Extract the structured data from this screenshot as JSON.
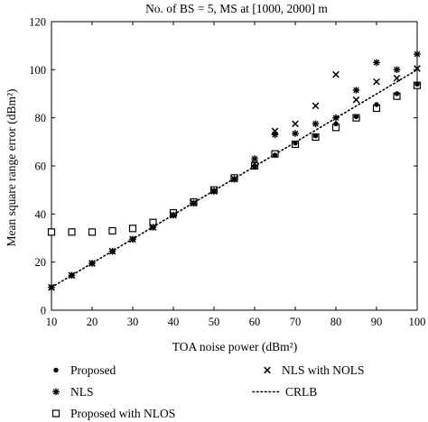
{
  "chart_data": {
    "type": "scatter",
    "title": "No. of BS = 5, MS at [1000, 2000] m",
    "xlabel": "TOA noise power (dBm²)",
    "ylabel": "Mean square range error (dBm²)",
    "xlim": [
      10,
      100
    ],
    "ylim": [
      0,
      120
    ],
    "xticks": [
      10,
      20,
      30,
      40,
      50,
      60,
      70,
      80,
      90,
      100
    ],
    "yticks": [
      0,
      20,
      40,
      60,
      80,
      100,
      120
    ],
    "grid": false,
    "legend_position": "below",
    "series": [
      {
        "name": "Proposed",
        "marker": "dot",
        "x": [
          10,
          15,
          20,
          25,
          30,
          35,
          40,
          45,
          50,
          55,
          60,
          65,
          70,
          75,
          80,
          85,
          90,
          95,
          100
        ],
        "y": [
          9.5,
          14.5,
          19.5,
          24.5,
          29.5,
          34.5,
          39.5,
          44.5,
          49.5,
          54.5,
          59.5,
          64.5,
          69.5,
          72.5,
          77.5,
          80.5,
          85.5,
          90,
          94
        ]
      },
      {
        "name": "NLS",
        "marker": "star",
        "x": [
          10,
          15,
          20,
          25,
          30,
          35,
          40,
          45,
          50,
          55,
          60,
          65,
          70,
          75,
          80,
          85,
          90,
          95,
          100
        ],
        "y": [
          9.5,
          14.5,
          19.5,
          24.5,
          29.5,
          34.5,
          39.5,
          44.5,
          49.5,
          54.5,
          63,
          73,
          73.5,
          77.5,
          80,
          91.5,
          103,
          100,
          106.5
        ]
      },
      {
        "name": "Proposed with NLOS",
        "marker": "square",
        "x": [
          10,
          15,
          20,
          25,
          30,
          35,
          40,
          45,
          50,
          55,
          60,
          65,
          70,
          75,
          80,
          85,
          90,
          95,
          100
        ],
        "y": [
          32.5,
          32.5,
          32.5,
          33,
          34,
          36.5,
          40.5,
          45,
          50,
          55,
          60,
          65,
          69,
          72,
          76,
          80,
          84,
          89,
          93.5
        ]
      },
      {
        "name": "NLS with NOLS",
        "marker": "x",
        "x": [
          10,
          15,
          20,
          25,
          30,
          35,
          40,
          45,
          50,
          55,
          60,
          65,
          70,
          75,
          80,
          85,
          90,
          95,
          100
        ],
        "y": [
          9.5,
          14.5,
          19.5,
          24.5,
          29.5,
          34.5,
          39.5,
          44.5,
          49.5,
          54.5,
          61,
          74.5,
          77.5,
          85,
          98,
          87.5,
          95,
          96.5,
          100.5
        ]
      },
      {
        "name": "CRLB",
        "marker": "dotted-line",
        "x": [
          10,
          100
        ],
        "y": [
          9.5,
          100
        ]
      }
    ]
  }
}
